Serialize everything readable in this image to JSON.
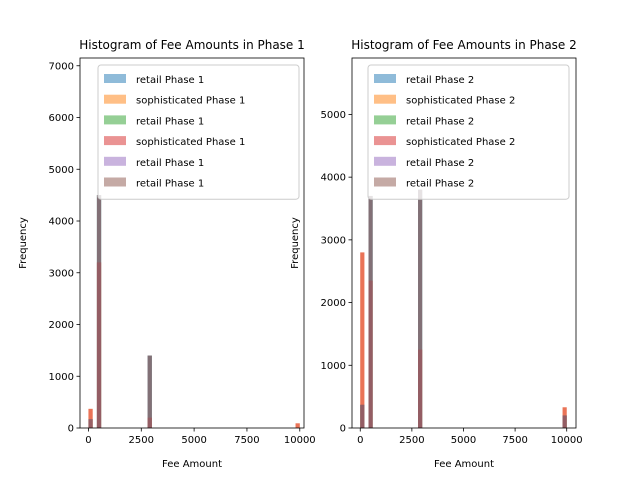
{
  "chart_data": [
    {
      "type": "bar",
      "title": "Histogram of Fee Amounts in Phase 1",
      "xlabel": "Fee Amount",
      "ylabel": "Frequency",
      "xlim": [
        -400,
        10200
      ],
      "ylim": [
        0,
        7150
      ],
      "xticks": [
        0,
        2500,
        5000,
        7500,
        10000
      ],
      "xtick_labels": [
        "0",
        "2500",
        "5000",
        "7500",
        "10000"
      ],
      "yticks": [
        0,
        1000,
        2000,
        3000,
        4000,
        5000,
        6000,
        7000
      ],
      "ytick_labels": [
        "0",
        "1000",
        "2000",
        "3000",
        "4000",
        "5000",
        "6000",
        "7000"
      ],
      "legend_position": "top-right",
      "series": [
        {
          "name": "retail Phase 1",
          "color": "#1f77b4",
          "bars": [
            {
              "x": 500,
              "width": 200,
              "value": 4500
            },
            {
              "x": 2900,
              "width": 200,
              "value": 1400
            }
          ]
        },
        {
          "name": "sophisticated Phase 1",
          "color": "#ff7f0e",
          "bars": [
            {
              "x": 100,
              "width": 200,
              "value": 370
            },
            {
              "x": 500,
              "width": 200,
              "value": 3200
            },
            {
              "x": 2900,
              "width": 200,
              "value": 200
            },
            {
              "x": 9900,
              "width": 200,
              "value": 90
            }
          ]
        },
        {
          "name": "retail Phase 1",
          "color": "#2ca02c",
          "bars": [
            {
              "x": 100,
              "width": 200,
              "value": 170
            },
            {
              "x": 500,
              "width": 200,
              "value": 4500
            },
            {
              "x": 2900,
              "width": 200,
              "value": 1400
            }
          ]
        },
        {
          "name": "sophisticated Phase 1",
          "color": "#d62728",
          "bars": [
            {
              "x": 100,
              "width": 200,
              "value": 370
            },
            {
              "x": 500,
              "width": 200,
              "value": 3200
            },
            {
              "x": 2900,
              "width": 200,
              "value": 200
            },
            {
              "x": 9900,
              "width": 200,
              "value": 90
            }
          ]
        },
        {
          "name": "retail Phase 1",
          "color": "#9467bd",
          "bars": [
            {
              "x": 100,
              "width": 200,
              "value": 170
            },
            {
              "x": 500,
              "width": 200,
              "value": 4500
            },
            {
              "x": 2900,
              "width": 200,
              "value": 1400
            }
          ]
        },
        {
          "name": "retail Phase 1",
          "color": "#8c564b",
          "bars": [
            {
              "x": 100,
              "width": 200,
              "value": 170
            },
            {
              "x": 500,
              "width": 200,
              "value": 4500
            },
            {
              "x": 2900,
              "width": 200,
              "value": 1400
            }
          ]
        }
      ]
    },
    {
      "type": "bar",
      "title": "Histogram of Fee Amounts in Phase 2",
      "xlabel": "Fee Amount",
      "ylabel": "Frequency",
      "xlim": [
        -400,
        10450
      ],
      "ylim": [
        0,
        5900
      ],
      "xticks": [
        0,
        2500,
        5000,
        7500,
        10000
      ],
      "xtick_labels": [
        "0",
        "2500",
        "5000",
        "7500",
        "10000"
      ],
      "yticks": [
        0,
        1000,
        2000,
        3000,
        4000,
        5000
      ],
      "ytick_labels": [
        "0",
        "1000",
        "2000",
        "3000",
        "4000",
        "5000"
      ],
      "legend_position": "top-right",
      "series": [
        {
          "name": "retail Phase 2",
          "color": "#1f77b4",
          "bars": [
            {
              "x": 100,
              "width": 200,
              "value": 370
            },
            {
              "x": 500,
              "width": 200,
              "value": 3700
            },
            {
              "x": 2900,
              "width": 200,
              "value": 3800
            },
            {
              "x": 9900,
              "width": 200,
              "value": 200
            }
          ]
        },
        {
          "name": "sophisticated Phase 2",
          "color": "#ff7f0e",
          "bars": [
            {
              "x": 100,
              "width": 200,
              "value": 2800
            },
            {
              "x": 500,
              "width": 200,
              "value": 2350
            },
            {
              "x": 2900,
              "width": 200,
              "value": 1250
            },
            {
              "x": 9900,
              "width": 200,
              "value": 330
            }
          ]
        },
        {
          "name": "retail Phase 2",
          "color": "#2ca02c",
          "bars": [
            {
              "x": 100,
              "width": 200,
              "value": 370
            },
            {
              "x": 500,
              "width": 200,
              "value": 3700
            },
            {
              "x": 2900,
              "width": 200,
              "value": 3800
            },
            {
              "x": 9900,
              "width": 200,
              "value": 200
            }
          ]
        },
        {
          "name": "sophisticated Phase 2",
          "color": "#d62728",
          "bars": [
            {
              "x": 100,
              "width": 200,
              "value": 2800
            },
            {
              "x": 500,
              "width": 200,
              "value": 2350
            },
            {
              "x": 2900,
              "width": 200,
              "value": 1250
            },
            {
              "x": 9900,
              "width": 200,
              "value": 330
            }
          ]
        },
        {
          "name": "retail Phase 2",
          "color": "#9467bd",
          "bars": [
            {
              "x": 100,
              "width": 200,
              "value": 370
            },
            {
              "x": 500,
              "width": 200,
              "value": 3700
            },
            {
              "x": 2900,
              "width": 200,
              "value": 3800
            },
            {
              "x": 9900,
              "width": 200,
              "value": 200
            }
          ]
        },
        {
          "name": "retail Phase 2",
          "color": "#8c564b",
          "bars": [
            {
              "x": 100,
              "width": 200,
              "value": 370
            },
            {
              "x": 500,
              "width": 200,
              "value": 3700
            },
            {
              "x": 2900,
              "width": 200,
              "value": 3800
            },
            {
              "x": 9900,
              "width": 200,
              "value": 200
            }
          ]
        }
      ]
    }
  ]
}
